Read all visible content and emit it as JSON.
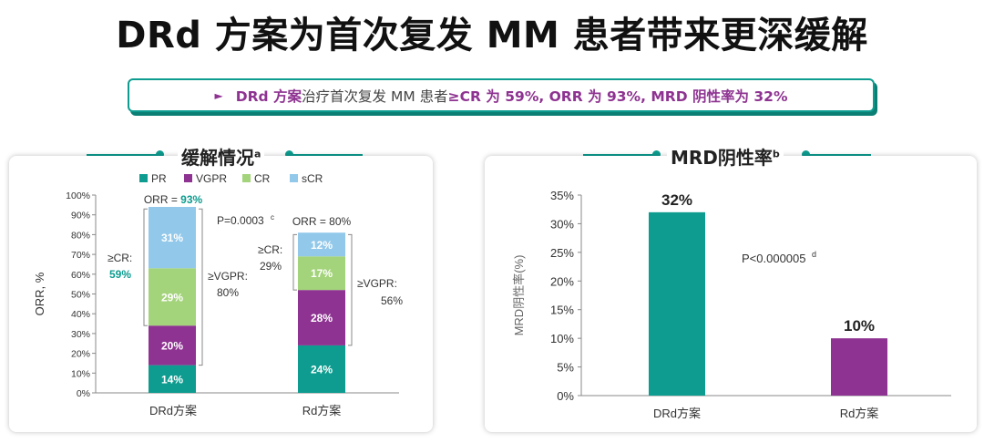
{
  "header": {
    "title": "DRd 方案为首次复发 MM 患者带来更深缓解"
  },
  "banner": {
    "bullet": "►",
    "part1": "DRd 方案",
    "part2": "治疗首次复发 MM 患者 ",
    "part3": "≥CR 为 59%, ORR 为 93%, MRD 阴性率为 32%"
  },
  "colors": {
    "teal": "#0d9c8f",
    "purple": "#8e3391",
    "green": "#a3d37a",
    "blue": "#92c8ea"
  },
  "chart_data": [
    {
      "type": "bar",
      "stacked": true,
      "title": "缓解情况",
      "title_sup": "a",
      "ylabel": "ORR, %",
      "ylim": [
        0,
        100
      ],
      "yticks": [
        "0%",
        "10%",
        "20%",
        "30%",
        "40%",
        "50%",
        "60%",
        "70%",
        "80%",
        "90%",
        "100%"
      ],
      "categories": [
        "DRd方案",
        "Rd方案"
      ],
      "legend": [
        "PR",
        "VGPR",
        "CR",
        "sCR"
      ],
      "series": [
        {
          "name": "PR",
          "values": [
            14,
            24
          ],
          "labels": [
            "14%",
            "24%"
          ]
        },
        {
          "name": "VGPR",
          "values": [
            20,
            28
          ],
          "labels": [
            "20%",
            "28%"
          ]
        },
        {
          "name": "CR",
          "values": [
            29,
            17
          ],
          "labels": [
            "29%",
            "17%"
          ]
        },
        {
          "name": "sCR",
          "values": [
            31,
            12
          ],
          "labels": [
            "31%",
            "12%"
          ]
        }
      ],
      "annotations": {
        "orr_drd_prefix": "ORR = ",
        "orr_drd_value": "93%",
        "orr_rd": "ORR = 80%",
        "p_value": "P=0.0003",
        "p_sup": "c",
        "cr_drd_label": "≥CR:",
        "cr_drd_value": "59%",
        "cr_rd_label": "≥CR:",
        "cr_rd_value": "29%",
        "vgpr_drd_label": "≥VGPR:",
        "vgpr_drd_value": "80%",
        "vgpr_rd_label": "≥VGPR:",
        "vgpr_rd_value": "56%"
      }
    },
    {
      "type": "bar",
      "title": "MRD阴性率",
      "title_sup": "b",
      "ylabel": "MRD阴性率(%)",
      "ylim": [
        0,
        35
      ],
      "yticks": [
        "0%",
        "5%",
        "10%",
        "15%",
        "20%",
        "25%",
        "30%",
        "35%"
      ],
      "categories": [
        "DRd方案",
        "Rd方案"
      ],
      "values": [
        32,
        10
      ],
      "labels": [
        "32%",
        "10%"
      ],
      "annotations": {
        "p_value": "P<0.000005",
        "p_sup": "d"
      }
    }
  ]
}
